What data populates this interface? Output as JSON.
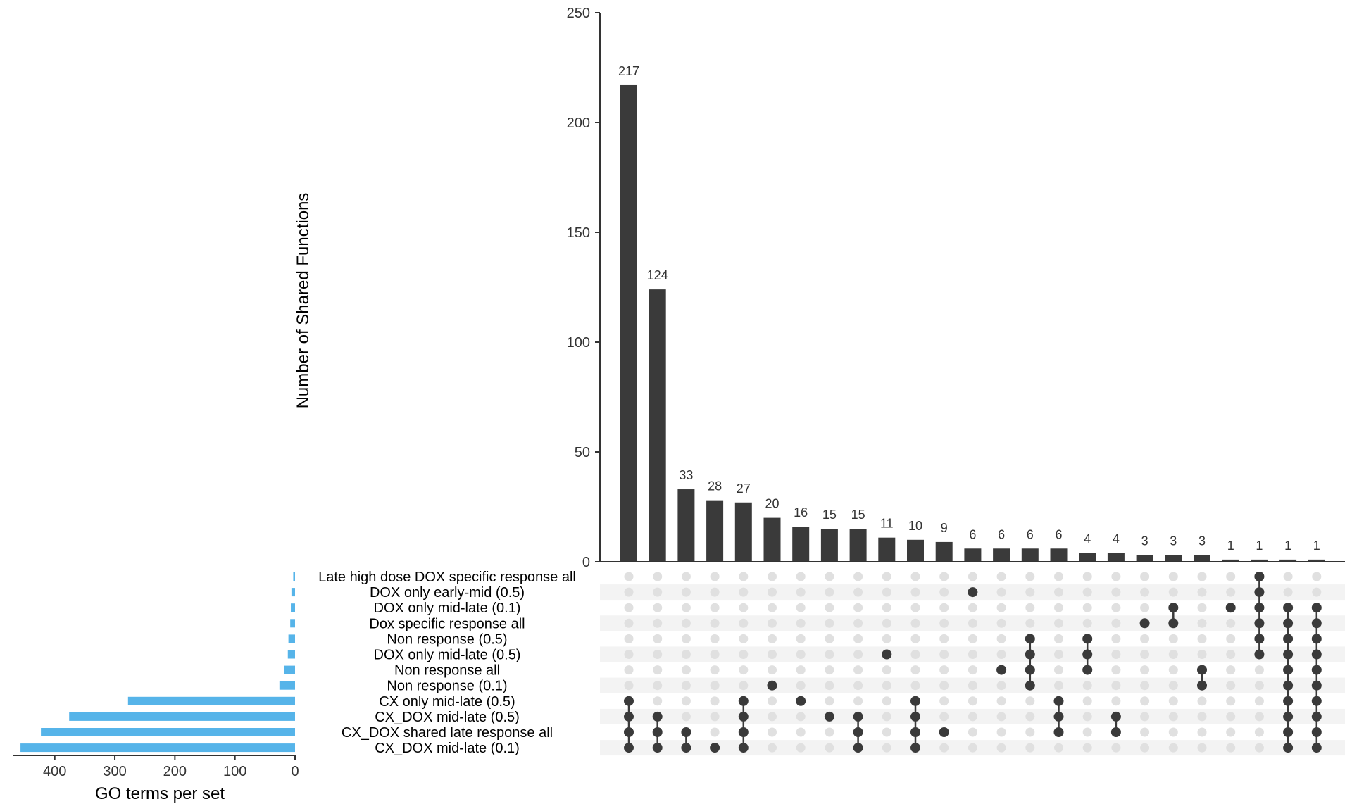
{
  "chart_data": {
    "type": "bar",
    "subtype": "upset",
    "intersection_axis": {
      "ylabel": "Number of Shared Functions",
      "ylim": [
        0,
        250
      ],
      "ticks": [
        "0",
        "50",
        "100",
        "150",
        "200",
        "250"
      ]
    },
    "set_size_axis": {
      "xlabel": "GO terms per set",
      "xlim": [
        0,
        470
      ],
      "ticks": [
        "400",
        "300",
        "200",
        "100",
        "0"
      ]
    },
    "sets": [
      {
        "name": "Late high dose DOX specific response all",
        "size": 3
      },
      {
        "name": "DOX only early-mid (0.5)",
        "size": 6
      },
      {
        "name": "DOX only mid-late (0.1)",
        "size": 7
      },
      {
        "name": "Dox specific response all",
        "size": 8
      },
      {
        "name": "Non response (0.5)",
        "size": 11
      },
      {
        "name": "DOX only mid-late (0.5)",
        "size": 12
      },
      {
        "name": "Non response all",
        "size": 18
      },
      {
        "name": "Non response (0.1)",
        "size": 26
      },
      {
        "name": "CX only mid-late (0.5)",
        "size": 278
      },
      {
        "name": "CX_DOX mid-late (0.5)",
        "size": 376
      },
      {
        "name": "CX_DOX shared late response all",
        "size": 423
      },
      {
        "name": "CX_DOX mid-late (0.1)",
        "size": 457
      }
    ],
    "intersections": [
      {
        "value": 217,
        "label": "217",
        "members": [
          8,
          9,
          10,
          11
        ]
      },
      {
        "value": 124,
        "label": "124",
        "members": [
          9,
          10,
          11
        ]
      },
      {
        "value": 33,
        "label": "33",
        "members": [
          10,
          11
        ]
      },
      {
        "value": 28,
        "label": "28",
        "members": [
          11
        ]
      },
      {
        "value": 27,
        "label": "27",
        "members": [
          8,
          9,
          10,
          11
        ]
      },
      {
        "value": 20,
        "label": "20",
        "members": [
          7
        ]
      },
      {
        "value": 16,
        "label": "16",
        "members": [
          8
        ]
      },
      {
        "value": 15,
        "label": "15",
        "members": [
          9
        ]
      },
      {
        "value": 15,
        "label": "15",
        "members": [
          9,
          10,
          11
        ]
      },
      {
        "value": 11,
        "label": "11",
        "members": [
          5
        ]
      },
      {
        "value": 10,
        "label": "10",
        "members": [
          8,
          9,
          10,
          11
        ]
      },
      {
        "value": 9,
        "label": "9",
        "members": [
          10
        ]
      },
      {
        "value": 6,
        "label": "6",
        "members": [
          1
        ]
      },
      {
        "value": 6,
        "label": "6",
        "members": [
          6
        ]
      },
      {
        "value": 6,
        "label": "6",
        "members": [
          4,
          5,
          6,
          7
        ]
      },
      {
        "value": 6,
        "label": "6",
        "members": [
          8,
          9,
          10
        ]
      },
      {
        "value": 4,
        "label": "4",
        "members": [
          4,
          5,
          6
        ]
      },
      {
        "value": 4,
        "label": "4",
        "members": [
          9,
          10
        ]
      },
      {
        "value": 3,
        "label": "3",
        "members": [
          3
        ]
      },
      {
        "value": 3,
        "label": "3",
        "members": [
          2,
          3
        ]
      },
      {
        "value": 3,
        "label": "3",
        "members": [
          6,
          7
        ]
      },
      {
        "value": 1,
        "label": "1",
        "members": [
          2
        ]
      },
      {
        "value": 1,
        "label": "1",
        "members": [
          0,
          1,
          2,
          3,
          4,
          5
        ]
      },
      {
        "value": 1,
        "label": "1",
        "members": [
          2,
          3,
          4,
          5,
          6,
          7,
          8,
          9,
          10,
          11
        ]
      },
      {
        "value": 1,
        "label": "1",
        "members": [
          2,
          3,
          4,
          5,
          6,
          7,
          8,
          9,
          10,
          11
        ]
      }
    ],
    "colors": {
      "intersection_bar": "#3a3a3a",
      "set_bar": "#56b4e9",
      "dot_active": "#3a3a3a",
      "dot_inactive": "#e0e0e0",
      "row_stripe": "#f3f3f3"
    }
  }
}
